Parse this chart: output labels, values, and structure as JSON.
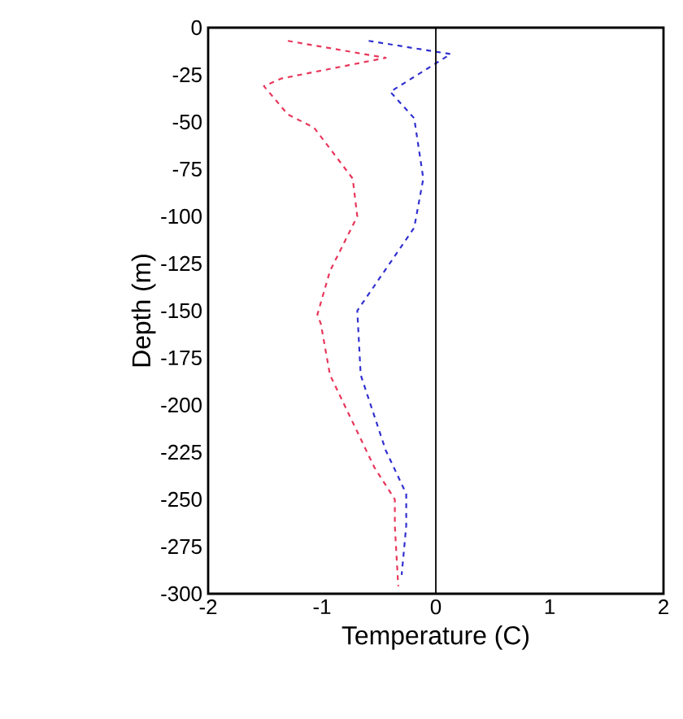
{
  "chart_data": {
    "type": "line",
    "xlabel": "Temperature (C)",
    "ylabel": "Depth (m)",
    "xlim": [
      -2,
      2
    ],
    "ylim": [
      -300,
      0
    ],
    "xticks": [
      -2,
      -1,
      0,
      1,
      2
    ],
    "yticks": [
      0,
      -25,
      -50,
      -75,
      -100,
      -125,
      -150,
      -175,
      -200,
      -225,
      -250,
      -275,
      -300
    ],
    "line_style": "dashed",
    "marker": "none",
    "ref_lines": [
      {
        "axis": "x",
        "value": 0,
        "color": "#000000",
        "line_style": "solid"
      }
    ],
    "series": [
      {
        "color": "#e8365a",
        "x": [
          -1.3,
          -0.44,
          -1.36,
          -1.51,
          -1.3,
          -1.07,
          -0.73,
          -0.69,
          -0.93,
          -1.04,
          -1.01,
          -0.93,
          -0.54,
          -0.36,
          -0.36,
          -0.33
        ],
        "values": [
          -7,
          -16,
          -27,
          -31,
          -46,
          -53,
          -80,
          -100,
          -129,
          -152,
          -157,
          -184,
          -233,
          -250,
          -264,
          -296
        ]
      },
      {
        "color": "#3030d0",
        "x": [
          -0.59,
          0.13,
          -0.4,
          -0.19,
          -0.11,
          -0.19,
          -0.36,
          -0.69,
          -0.66,
          -0.44,
          -0.26,
          -0.26,
          -0.3
        ],
        "values": [
          -7,
          -14,
          -34,
          -48,
          -80,
          -106,
          -121,
          -150,
          -184,
          -224,
          -247,
          -264,
          -290
        ]
      }
    ]
  }
}
